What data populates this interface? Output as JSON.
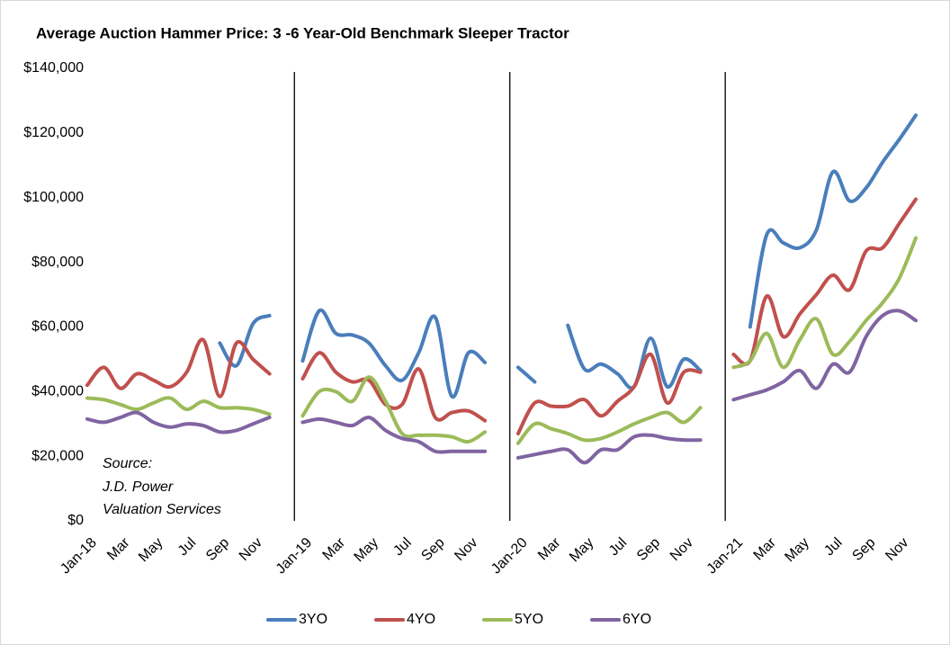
{
  "chart_data": {
    "type": "line",
    "title": "Average Auction Hammer Price: 3 -6 Year-Old Benchmark Sleeper Tractor",
    "annotation": [
      "Source:",
      "J.D. Power",
      "Valuation Services"
    ],
    "categories": [
      "Jan-18",
      null,
      "Mar",
      null,
      "May",
      null,
      "Jul",
      null,
      "Sep",
      null,
      "Nov",
      null,
      null,
      "Jan-19",
      null,
      "Mar",
      null,
      "May",
      null,
      "Jul",
      null,
      "Sep",
      null,
      "Nov",
      null,
      null,
      "Jan-20",
      null,
      "Mar",
      null,
      "May",
      null,
      "Jul",
      null,
      "Sep",
      null,
      "Nov",
      null,
      null,
      "Jan-21",
      null,
      "Mar",
      null,
      "May",
      null,
      "Jul",
      null,
      "Sep",
      null,
      "Nov",
      null
    ],
    "series": [
      {
        "name": "3YO",
        "color": "#4a7ebb",
        "values": [
          null,
          null,
          null,
          null,
          null,
          null,
          null,
          null,
          55000,
          48000,
          61000,
          63500,
          null,
          49500,
          65000,
          58000,
          57500,
          55000,
          48000,
          43500,
          52000,
          63000,
          38500,
          52000,
          49000,
          null,
          47500,
          43000,
          null,
          60500,
          47000,
          48500,
          45500,
          41500,
          56500,
          41500,
          50000,
          46500,
          null,
          null,
          60000,
          88500,
          86000,
          84500,
          90000,
          108000,
          99000,
          103000,
          111000,
          118000,
          125500
        ]
      },
      {
        "name": "4YO",
        "color": "#c0504d",
        "values": [
          42000,
          47500,
          41000,
          45500,
          43500,
          41500,
          46000,
          56000,
          38500,
          55000,
          50000,
          45500,
          null,
          44000,
          52000,
          46000,
          43000,
          43500,
          36000,
          36000,
          47000,
          32000,
          33500,
          34000,
          31000,
          null,
          27000,
          36500,
          35500,
          35500,
          37500,
          32500,
          37000,
          41500,
          51500,
          36500,
          46000,
          46000,
          null,
          51500,
          49500,
          69500,
          57000,
          64000,
          70000,
          76000,
          71500,
          83500,
          84500,
          92000,
          99500
        ]
      },
      {
        "name": "5YO",
        "color": "#9bbb59",
        "values": [
          38000,
          37500,
          36000,
          34500,
          36500,
          38000,
          34500,
          37000,
          35000,
          35000,
          34500,
          33000,
          null,
          32500,
          40000,
          40000,
          37000,
          44500,
          37000,
          27000,
          26500,
          26500,
          26000,
          24500,
          27500,
          null,
          24000,
          30000,
          28500,
          27000,
          25000,
          25500,
          27500,
          30000,
          32000,
          33500,
          30500,
          35000,
          null,
          47500,
          49500,
          58000,
          47500,
          56000,
          62500,
          51500,
          55500,
          62000,
          67500,
          75000,
          87500
        ]
      },
      {
        "name": "6YO",
        "color": "#8064a2",
        "values": [
          31500,
          30500,
          32000,
          33500,
          30500,
          29000,
          30000,
          29500,
          27500,
          28000,
          30000,
          32000,
          null,
          30500,
          31500,
          30500,
          29500,
          32000,
          28000,
          25500,
          24500,
          21500,
          21500,
          21500,
          21500,
          null,
          19500,
          20500,
          21500,
          22000,
          18000,
          22000,
          22000,
          26000,
          26500,
          25500,
          25000,
          25000,
          null,
          37500,
          39000,
          40500,
          43000,
          46500,
          41000,
          48500,
          46000,
          57000,
          63500,
          65000,
          62000
        ]
      }
    ],
    "ylim": [
      0,
      140000
    ],
    "yticks": [
      {
        "value": 0,
        "label": "$0"
      },
      {
        "value": 20000,
        "label": "$20,000"
      },
      {
        "value": 40000,
        "label": "$40,000"
      },
      {
        "value": 60000,
        "label": "$60,000"
      },
      {
        "value": 80000,
        "label": "$80,000"
      },
      {
        "value": 100000,
        "label": "$100,000"
      },
      {
        "value": 120000,
        "label": "$120,000"
      },
      {
        "value": 140000,
        "label": "$140,000"
      }
    ],
    "grid": false,
    "legend": "bottom"
  }
}
